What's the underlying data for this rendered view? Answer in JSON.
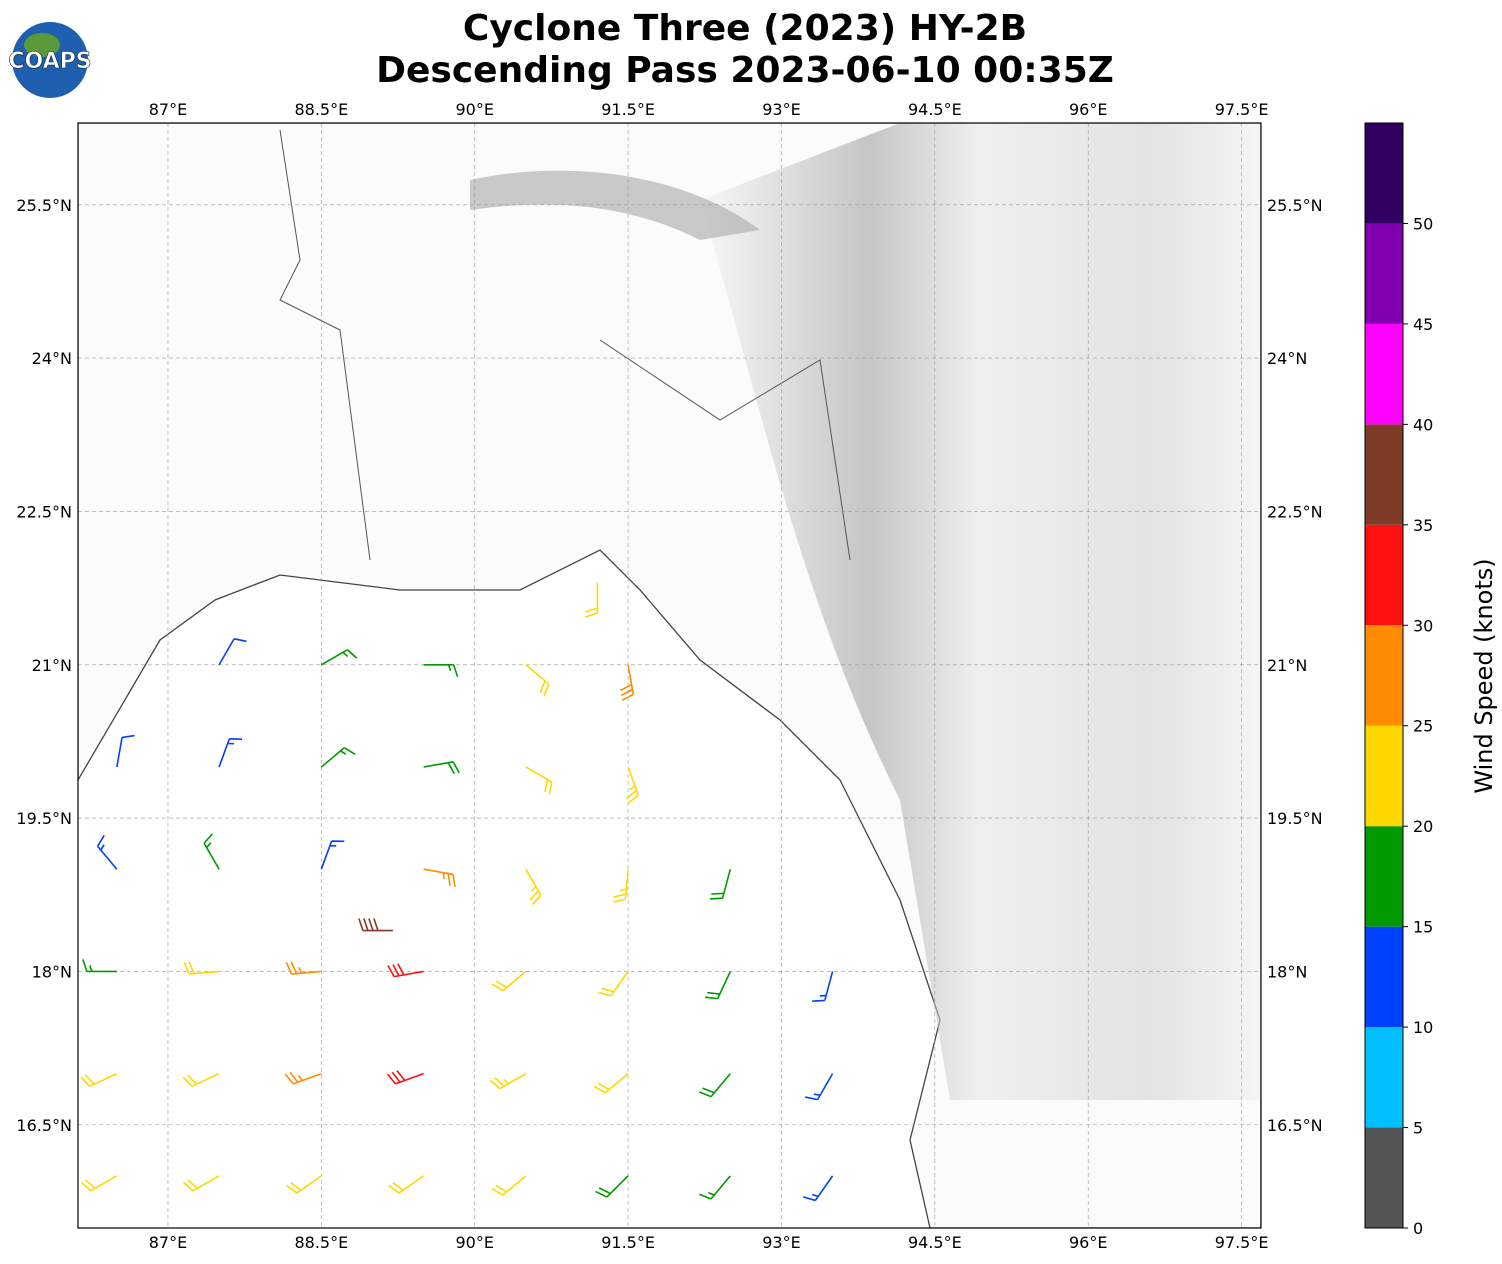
{
  "chart_data": {
    "type": "barbs",
    "logo": "COAPS",
    "title": "Cyclone Three (2023) HY-2B",
    "subtitle": "Descending Pass 2023-06-10 00:35Z",
    "xlim": [
      86.12,
      97.69
    ],
    "ylim": [
      15.49,
      26.3
    ],
    "xticks": [
      {
        "value": 87,
        "label": "87°E"
      },
      {
        "value": 88.5,
        "label": "88.5°E"
      },
      {
        "value": 90,
        "label": "90°E"
      },
      {
        "value": 91.5,
        "label": "91.5°E"
      },
      {
        "value": 93,
        "label": "93°E"
      },
      {
        "value": 94.5,
        "label": "94.5°E"
      },
      {
        "value": 96,
        "label": "96°E"
      },
      {
        "value": 97.5,
        "label": "97.5°E"
      }
    ],
    "yticks": [
      {
        "value": 16.5,
        "label": "16.5°N"
      },
      {
        "value": 18,
        "label": "18°N"
      },
      {
        "value": 19.5,
        "label": "19.5°N"
      },
      {
        "value": 21,
        "label": "21°N"
      },
      {
        "value": 22.5,
        "label": "22.5°N"
      },
      {
        "value": 24,
        "label": "24°N"
      },
      {
        "value": 25.5,
        "label": "25.5°N"
      }
    ],
    "grid": true,
    "colorbar": {
      "label": "Wind Speed (knots)",
      "lim": [
        0,
        55
      ],
      "ticks": [
        0,
        5,
        10,
        15,
        20,
        25,
        30,
        35,
        40,
        45,
        50
      ],
      "bounds": [
        0,
        5,
        10,
        15,
        20,
        25,
        30,
        35,
        40,
        45,
        50,
        55
      ],
      "colors": [
        "#555555",
        "#00bfff",
        "#0040ff",
        "#009900",
        "#ffd700",
        "#ff8c00",
        "#ff1010",
        "#803a28",
        "#ff00ff",
        "#8000b0",
        "#300060"
      ]
    },
    "barbs": {
      "lon": [
        86.5,
        87.5,
        88.5,
        89.5,
        90.5,
        91.5,
        92.5,
        93.5,
        86.5,
        87.5,
        88.5,
        89.5,
        90.5,
        91.5,
        92.5,
        93.5,
        86.5,
        87.5,
        88.5,
        89.5,
        90.5,
        91.5,
        92.5,
        93.5,
        86.5,
        87.5,
        88.5,
        89.5,
        90.5,
        91.5,
        92.5,
        86.5,
        87.5,
        88.5,
        89.5,
        90.5,
        91.5,
        87.5,
        88.5,
        89.5,
        90.5,
        91.5,
        91.2,
        89.2
      ],
      "lat": [
        16,
        16,
        16,
        16,
        16,
        16,
        16,
        16,
        17,
        17,
        17,
        17,
        17,
        17,
        17,
        17,
        18,
        18,
        18,
        18,
        18,
        18,
        18,
        18,
        19,
        19,
        19,
        19,
        19,
        19,
        19,
        20,
        20,
        20,
        20,
        20,
        20,
        21,
        21,
        21,
        21,
        21,
        21.8,
        18.4
      ],
      "speed": [
        22,
        22,
        22,
        22,
        20,
        18,
        17,
        13,
        22,
        22,
        25,
        32,
        24,
        20,
        18,
        14,
        17,
        21,
        27,
        31,
        22,
        20,
        18,
        13,
        13,
        17,
        14,
        26,
        24,
        23,
        18,
        12,
        13,
        16,
        19,
        22,
        23,
        12,
        15,
        17,
        22,
        28,
        22,
        38
      ],
      "direction": [
        240,
        240,
        235,
        235,
        230,
        225,
        220,
        215,
        245,
        245,
        250,
        250,
        240,
        230,
        220,
        210,
        270,
        265,
        265,
        260,
        230,
        215,
        205,
        195,
        320,
        330,
        20,
        100,
        150,
        185,
        195,
        10,
        20,
        50,
        80,
        120,
        160,
        30,
        60,
        90,
        130,
        170,
        180,
        270
      ]
    }
  }
}
